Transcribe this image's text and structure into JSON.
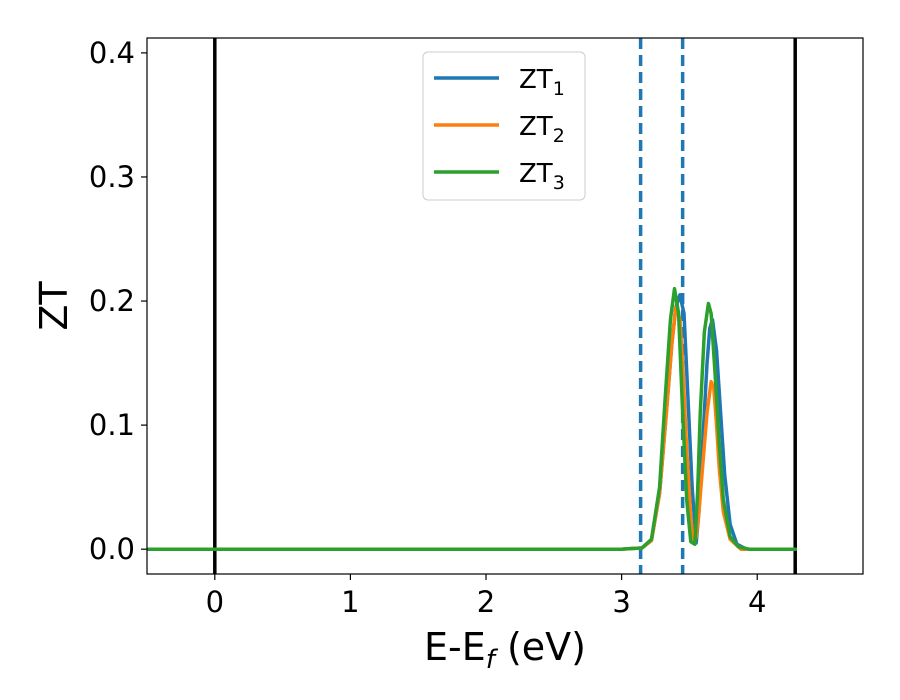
{
  "chart_data": {
    "type": "line",
    "xlabel": "E-E",
    "xlabel_sub": "f",
    "xlabel_unit": " (eV)",
    "ylabel": "ZT",
    "xlim": [
      -0.5,
      4.78
    ],
    "ylim": [
      -0.02,
      0.412
    ],
    "xticks": [
      0,
      1,
      2,
      3,
      4
    ],
    "xtick_labels": [
      "0",
      "1",
      "2",
      "3",
      "4"
    ],
    "yticks": [
      0.0,
      0.1,
      0.2,
      0.3,
      0.4
    ],
    "ytick_labels": [
      "0.0",
      "0.1",
      "0.2",
      "0.3",
      "0.4"
    ],
    "grid": false,
    "legend_position": "top-center",
    "vlines_solid": {
      "x": [
        0.0,
        4.28
      ],
      "color": "#000000"
    },
    "vlines_dashed": {
      "x": [
        3.14,
        3.45
      ],
      "color": "#1f77b4"
    },
    "series": [
      {
        "name": "ZT",
        "name_sub": "1",
        "color": "#1f77b4",
        "x": [
          -0.5,
          3.0,
          3.15,
          3.22,
          3.28,
          3.33,
          3.37,
          3.4,
          3.43,
          3.46,
          3.49,
          3.52,
          3.55,
          3.57,
          3.6,
          3.63,
          3.65,
          3.67,
          3.7,
          3.73,
          3.76,
          3.8,
          3.85,
          3.92,
          4.28
        ],
        "y": [
          0.0,
          0.0,
          0.001,
          0.007,
          0.045,
          0.11,
          0.165,
          0.195,
          0.205,
          0.19,
          0.12,
          0.05,
          0.005,
          0.03,
          0.09,
          0.15,
          0.178,
          0.185,
          0.16,
          0.11,
          0.06,
          0.02,
          0.004,
          0.0,
          0.0
        ]
      },
      {
        "name": "ZT",
        "name_sub": "2",
        "color": "#ff7f0e",
        "x": [
          -0.5,
          3.0,
          3.15,
          3.22,
          3.28,
          3.33,
          3.37,
          3.4,
          3.43,
          3.45,
          3.48,
          3.51,
          3.53,
          3.55,
          3.57,
          3.6,
          3.63,
          3.66,
          3.68,
          3.7,
          3.72,
          3.75,
          3.8,
          3.88,
          4.28
        ],
        "y": [
          0.0,
          0.0,
          0.001,
          0.007,
          0.045,
          0.11,
          0.165,
          0.195,
          0.185,
          0.15,
          0.08,
          0.025,
          0.005,
          0.01,
          0.03,
          0.07,
          0.11,
          0.135,
          0.13,
          0.1,
          0.065,
          0.03,
          0.008,
          0.0,
          0.0
        ]
      },
      {
        "name": "ZT",
        "name_sub": "3",
        "color": "#2ca02c",
        "x": [
          -0.5,
          3.0,
          3.15,
          3.22,
          3.28,
          3.32,
          3.36,
          3.39,
          3.42,
          3.45,
          3.48,
          3.51,
          3.54,
          3.56,
          3.58,
          3.61,
          3.64,
          3.66,
          3.69,
          3.72,
          3.75,
          3.8,
          3.86,
          3.94,
          4.28
        ],
        "y": [
          0.0,
          0.0,
          0.001,
          0.008,
          0.05,
          0.12,
          0.185,
          0.21,
          0.19,
          0.11,
          0.04,
          0.006,
          0.004,
          0.045,
          0.11,
          0.175,
          0.198,
          0.19,
          0.14,
          0.085,
          0.04,
          0.01,
          0.002,
          0.0,
          0.0
        ]
      }
    ]
  }
}
